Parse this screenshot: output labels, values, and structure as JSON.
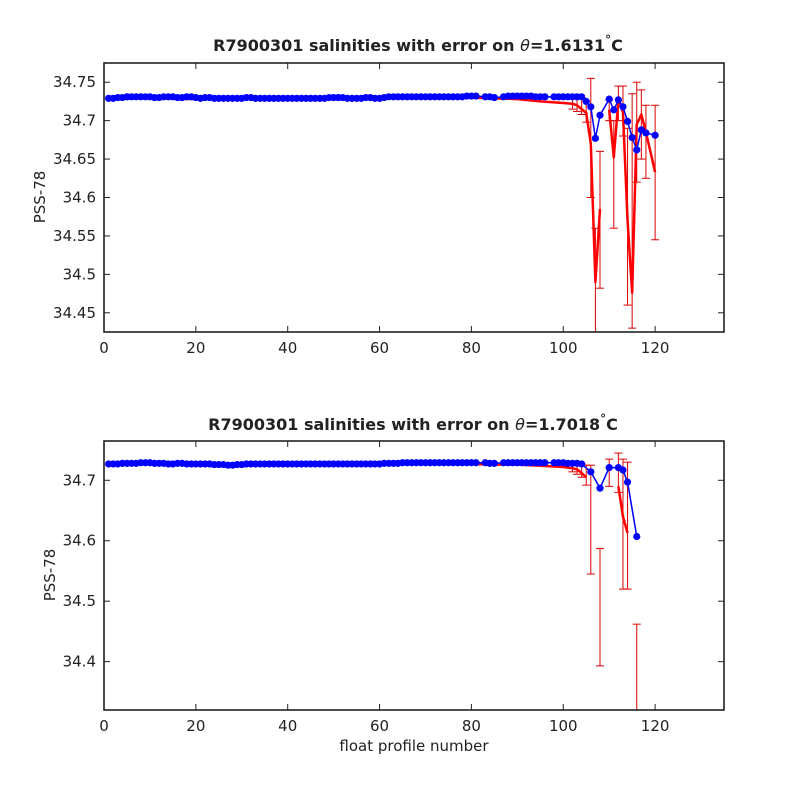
{
  "colors": {
    "float_points": "#0000ff",
    "calibrated": "#ff0000",
    "error_bars": "#dd0000",
    "mapped_line": "#33cc33",
    "axes": "#222222"
  },
  "chart_data": [
    {
      "type": "scatter",
      "title": {
        "prefix": "R7900301 salinities with error on ",
        "symbol": "θ",
        "value": "=1.6131",
        "unit": "C"
      },
      "xlabel": "",
      "ylabel": "PSS-78",
      "xlim": [
        0,
        135
      ],
      "ylim": [
        34.425,
        34.775
      ],
      "xticks": [
        0,
        20,
        40,
        60,
        80,
        100,
        120
      ],
      "xtick_labels": [
        "0",
        "20",
        "40",
        "60",
        "80",
        "100",
        "120"
      ],
      "yticks": [
        34.45,
        34.5,
        34.55,
        34.6,
        34.65,
        34.7,
        34.75
      ],
      "ytick_labels": [
        "34.45",
        "34.5",
        "34.55",
        "34.6",
        "34.65",
        "34.7",
        "34.75"
      ],
      "series": [
        {
          "role": "float",
          "x": [
            1,
            2,
            3,
            4,
            5,
            6,
            7,
            8,
            9,
            10,
            11,
            12,
            13,
            14,
            15,
            16,
            17,
            18,
            19,
            20,
            21,
            22,
            23,
            24,
            25,
            26,
            27,
            28,
            29,
            30,
            31,
            32,
            33,
            34,
            35,
            36,
            37,
            38,
            39,
            40,
            41,
            42,
            43,
            44,
            45,
            46,
            47,
            48,
            49,
            50,
            51,
            52,
            53,
            54,
            55,
            56,
            57,
            58,
            59,
            60,
            61,
            62,
            63,
            64,
            65,
            66,
            67,
            68,
            69,
            70,
            71,
            72,
            73,
            74,
            75,
            76,
            77,
            78,
            79,
            80,
            81,
            83,
            84,
            85,
            87,
            88,
            89,
            90,
            91,
            92,
            93,
            94,
            95,
            96,
            98,
            99,
            100,
            101,
            102,
            103,
            104,
            105,
            106,
            107,
            108,
            110,
            111,
            112,
            113,
            114,
            115,
            116,
            117,
            118,
            120
          ],
          "y": [
            34.729,
            34.729,
            34.73,
            34.73,
            34.731,
            34.731,
            34.731,
            34.731,
            34.731,
            34.731,
            34.73,
            34.73,
            34.731,
            34.731,
            34.731,
            34.73,
            34.73,
            34.731,
            34.731,
            34.73,
            34.729,
            34.73,
            34.73,
            34.729,
            34.729,
            34.729,
            34.729,
            34.729,
            34.729,
            34.729,
            34.73,
            34.73,
            34.729,
            34.729,
            34.729,
            34.729,
            34.729,
            34.729,
            34.729,
            34.729,
            34.729,
            34.729,
            34.729,
            34.729,
            34.729,
            34.729,
            34.729,
            34.729,
            34.73,
            34.73,
            34.73,
            34.73,
            34.729,
            34.729,
            34.729,
            34.729,
            34.73,
            34.73,
            34.729,
            34.729,
            34.73,
            34.731,
            34.731,
            34.731,
            34.731,
            34.731,
            34.731,
            34.731,
            34.731,
            34.731,
            34.731,
            34.731,
            34.731,
            34.731,
            34.731,
            34.731,
            34.731,
            34.731,
            34.732,
            34.732,
            34.732,
            34.731,
            34.731,
            34.73,
            34.731,
            34.732,
            34.732,
            34.732,
            34.732,
            34.732,
            34.732,
            34.731,
            34.731,
            34.731,
            34.731,
            34.731,
            34.731,
            34.731,
            34.731,
            34.731,
            34.731,
            34.725,
            34.718,
            34.677,
            34.707,
            34.728,
            34.714,
            34.727,
            34.718,
            34.699,
            34.678,
            34.662,
            34.688,
            34.684,
            34.681
          ]
        },
        {
          "role": "calibrated",
          "x": [
            1,
            10,
            20,
            30,
            40,
            50,
            60,
            70,
            80,
            85,
            90,
            95,
            100,
            102,
            103,
            104,
            105,
            106,
            107,
            108,
            109,
            110,
            111,
            112,
            113,
            114,
            115,
            116,
            117,
            118,
            120
          ],
          "y": [
            34.728,
            34.729,
            34.728,
            34.728,
            34.728,
            34.728,
            34.729,
            34.73,
            34.73,
            34.729,
            34.728,
            34.725,
            34.723,
            34.722,
            34.72,
            34.715,
            34.71,
            34.67,
            34.49,
            34.585,
            null,
            34.714,
            34.652,
            34.726,
            34.711,
            34.57,
            34.476,
            34.695,
            34.708,
            34.685,
            34.633
          ]
        },
        {
          "role": "error_bars",
          "x": [
            102,
            103,
            104,
            105,
            106,
            107,
            108,
            110,
            111,
            112,
            113,
            114,
            115,
            116,
            117,
            118,
            120
          ],
          "lo": [
            34.715,
            34.712,
            34.708,
            34.698,
            34.6,
            34.42,
            34.482,
            34.7,
            34.56,
            34.7,
            34.68,
            34.46,
            34.43,
            34.62,
            34.65,
            34.625,
            34.545
          ],
          "hi": [
            34.73,
            34.728,
            34.73,
            34.725,
            34.755,
            34.56,
            34.66,
            34.727,
            34.7,
            34.745,
            34.745,
            34.69,
            34.735,
            34.75,
            34.74,
            34.72,
            34.72
          ]
        }
      ]
    },
    {
      "type": "scatter",
      "title": {
        "prefix": "R7900301 salinities with error on ",
        "symbol": "θ",
        "value": "=1.7018",
        "unit": "C"
      },
      "xlabel": "float profile number",
      "ylabel": "PSS-78",
      "xlim": [
        0,
        135
      ],
      "ylim": [
        34.32,
        34.765
      ],
      "xticks": [
        0,
        20,
        40,
        60,
        80,
        100,
        120
      ],
      "xtick_labels": [
        "0",
        "20",
        "40",
        "60",
        "80",
        "100",
        "120"
      ],
      "yticks": [
        34.4,
        34.5,
        34.6,
        34.7
      ],
      "ytick_labels": [
        "34.4",
        "34.5",
        "34.6",
        "34.7"
      ],
      "series": [
        {
          "role": "float",
          "x": [
            1,
            2,
            3,
            4,
            5,
            6,
            7,
            8,
            9,
            10,
            11,
            12,
            13,
            14,
            15,
            16,
            17,
            18,
            19,
            20,
            21,
            22,
            23,
            24,
            25,
            26,
            27,
            28,
            29,
            30,
            31,
            32,
            33,
            34,
            35,
            36,
            37,
            38,
            39,
            40,
            41,
            42,
            43,
            44,
            45,
            46,
            47,
            48,
            49,
            50,
            51,
            52,
            53,
            54,
            55,
            56,
            57,
            58,
            59,
            60,
            61,
            62,
            63,
            64,
            65,
            66,
            67,
            68,
            69,
            70,
            71,
            72,
            73,
            74,
            75,
            76,
            77,
            78,
            79,
            80,
            81,
            83,
            84,
            85,
            87,
            88,
            89,
            90,
            91,
            92,
            93,
            94,
            95,
            96,
            98,
            99,
            100,
            101,
            102,
            103,
            104,
            106,
            108,
            110,
            112,
            113,
            114,
            116
          ],
          "y": [
            34.727,
            34.727,
            34.727,
            34.728,
            34.728,
            34.728,
            34.728,
            34.729,
            34.729,
            34.729,
            34.728,
            34.728,
            34.728,
            34.727,
            34.727,
            34.728,
            34.728,
            34.727,
            34.727,
            34.727,
            34.727,
            34.727,
            34.727,
            34.726,
            34.726,
            34.726,
            34.725,
            34.725,
            34.726,
            34.726,
            34.727,
            34.727,
            34.727,
            34.727,
            34.727,
            34.727,
            34.727,
            34.727,
            34.727,
            34.727,
            34.727,
            34.727,
            34.727,
            34.727,
            34.727,
            34.727,
            34.727,
            34.727,
            34.727,
            34.727,
            34.727,
            34.727,
            34.727,
            34.727,
            34.727,
            34.727,
            34.727,
            34.727,
            34.727,
            34.727,
            34.728,
            34.728,
            34.728,
            34.728,
            34.729,
            34.729,
            34.729,
            34.729,
            34.729,
            34.729,
            34.729,
            34.729,
            34.729,
            34.729,
            34.729,
            34.729,
            34.729,
            34.729,
            34.729,
            34.729,
            34.729,
            34.729,
            34.728,
            34.728,
            34.729,
            34.729,
            34.729,
            34.729,
            34.729,
            34.729,
            34.729,
            34.729,
            34.729,
            34.729,
            34.729,
            34.729,
            34.729,
            34.728,
            34.728,
            34.728,
            34.727,
            34.714,
            34.687,
            34.721,
            34.721,
            34.717,
            34.697,
            34.607
          ]
        },
        {
          "role": "calibrated",
          "x": [
            1,
            10,
            20,
            30,
            40,
            50,
            60,
            70,
            80,
            85,
            90,
            95,
            100,
            102,
            103,
            104,
            105,
            null,
            112,
            113,
            114
          ],
          "y": [
            34.726,
            34.727,
            34.726,
            34.726,
            34.726,
            34.726,
            34.726,
            34.727,
            34.727,
            34.726,
            34.726,
            34.724,
            34.722,
            34.72,
            34.718,
            34.712,
            34.705,
            null,
            34.69,
            34.64,
            34.613
          ]
        },
        {
          "role": "error_bars",
          "x": [
            102,
            103,
            104,
            105,
            106,
            108,
            110,
            112,
            113,
            114,
            116
          ],
          "lo": [
            34.714,
            34.71,
            34.705,
            34.692,
            34.545,
            34.393,
            34.69,
            34.68,
            34.52,
            34.52,
            34.32
          ],
          "hi": [
            34.729,
            34.728,
            34.727,
            34.725,
            34.725,
            34.587,
            34.735,
            34.745,
            34.735,
            34.73,
            34.462
          ]
        },
        {
          "role": "mapped",
          "x": [
            104,
            106,
            108,
            110,
            112,
            113,
            114,
            116
          ],
          "y": [
            34.727,
            34.714,
            34.687,
            34.721,
            34.721,
            34.717,
            34.697,
            34.607
          ]
        }
      ]
    }
  ]
}
